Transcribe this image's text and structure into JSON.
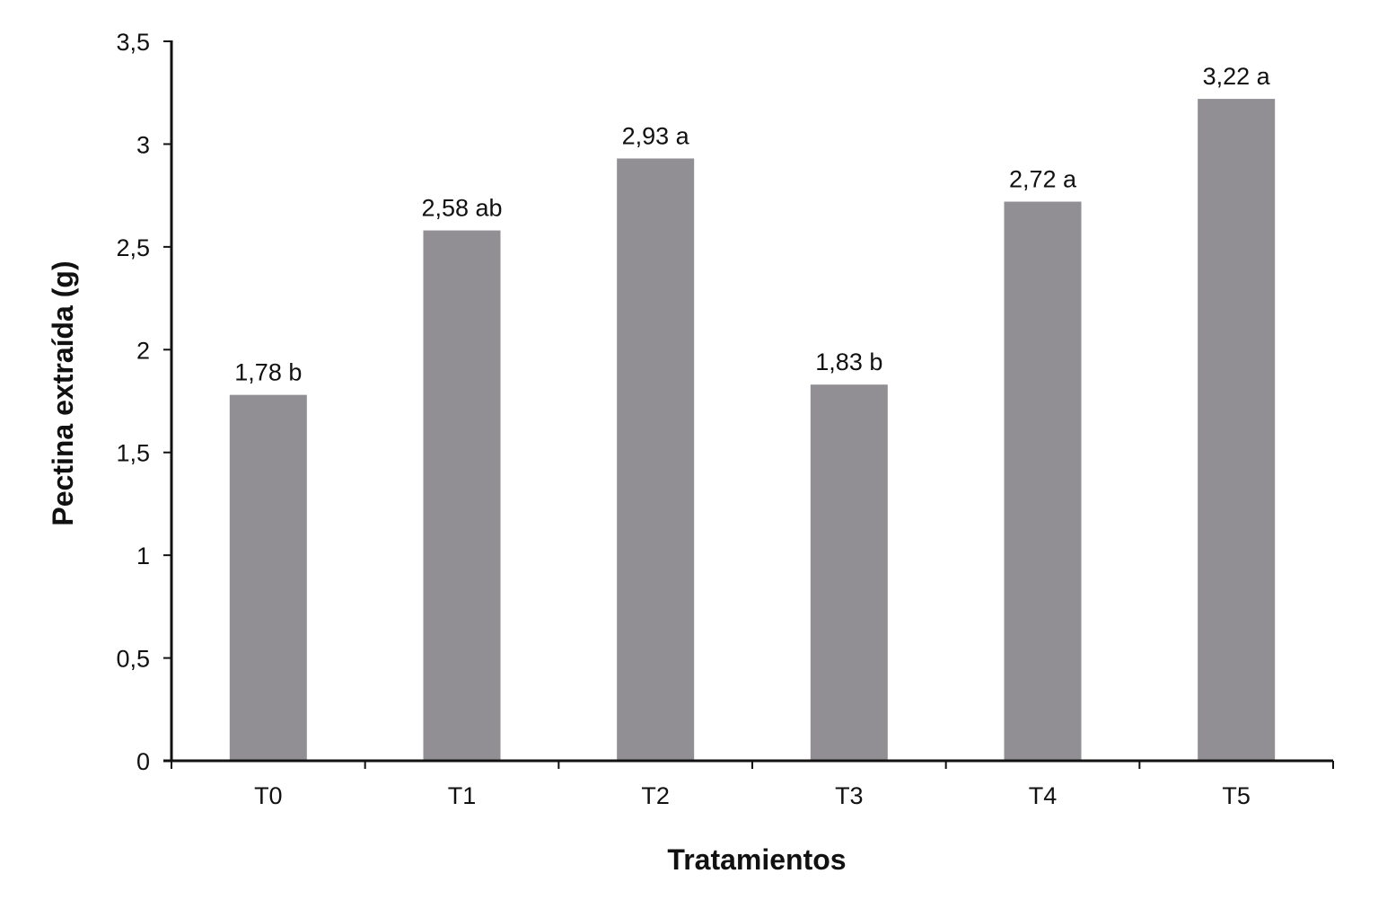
{
  "chart_data": {
    "type": "bar",
    "title": "",
    "xlabel": "Tratamientos",
    "ylabel": "Pectina extraída (g)",
    "categories": [
      "T0",
      "T1",
      "T2",
      "T3",
      "T4",
      "T5"
    ],
    "values": [
      1.78,
      2.58,
      2.93,
      1.83,
      2.72,
      3.22
    ],
    "data_labels": [
      "1,78 b",
      "2,58 ab",
      "2,93 a",
      "1,83 b",
      "2,72 a",
      "3,22 a"
    ],
    "ylim": [
      0,
      3.5
    ],
    "yticks": [
      0,
      0.5,
      1,
      1.5,
      2,
      2.5,
      3,
      3.5
    ],
    "ytick_labels": [
      "0",
      "0,5",
      "1",
      "1,5",
      "2",
      "2,5",
      "3",
      "3,5"
    ],
    "grid": false,
    "legend": "none",
    "bar_color": "#918f94",
    "axis_color": "#111111"
  }
}
